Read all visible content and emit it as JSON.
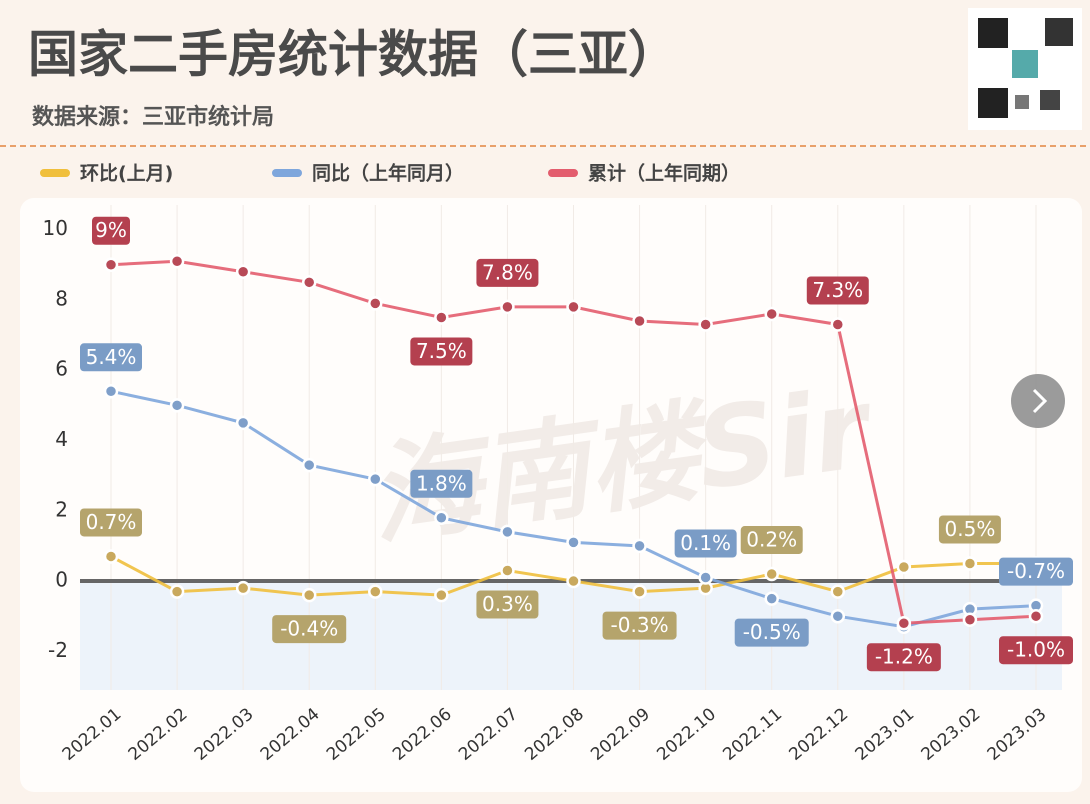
{
  "chart_data": {
    "type": "line",
    "title": "国家二手房统计数据（三亚）",
    "subtitle": "数据来源：三亚市统计局",
    "watermark": "海南楼Sir",
    "categories": [
      "2022.01",
      "2022.02",
      "2022.03",
      "2022.04",
      "2022.05",
      "2022.06",
      "2022.07",
      "2022.08",
      "2022.09",
      "2022.10",
      "2022.11",
      "2022.12",
      "2023.01",
      "2023.02",
      "2023.03"
    ],
    "series": [
      {
        "name": "环比(上月)",
        "color": "#f0bf3c",
        "values": [
          0.7,
          -0.3,
          -0.2,
          -0.4,
          -0.3,
          -0.4,
          0.3,
          0,
          -0.3,
          -0.2,
          0.2,
          -0.3,
          0.4,
          0.5,
          0.5
        ],
        "value_labels": [
          "0.7%",
          null,
          null,
          "-0.4%",
          null,
          null,
          "0.3%",
          null,
          "-0.3%",
          null,
          "0.2%",
          null,
          null,
          "0.5%",
          null
        ]
      },
      {
        "name": "同比（上年同月）",
        "color": "#7ea6dc",
        "values": [
          5.4,
          5.0,
          4.5,
          3.3,
          2.9,
          1.8,
          1.4,
          1.1,
          1.0,
          0.1,
          -0.5,
          -1.0,
          -1.3,
          -0.8,
          -0.7
        ],
        "value_labels": [
          "5.4%",
          null,
          null,
          null,
          null,
          "1.8%",
          null,
          null,
          null,
          "0.1%",
          "-0.5%",
          null,
          null,
          null,
          "-0.7%"
        ]
      },
      {
        "name": "累计（上年同期）",
        "color": "#e35d6e",
        "values": [
          9,
          9.1,
          8.8,
          8.5,
          7.9,
          7.5,
          7.8,
          7.8,
          7.4,
          7.3,
          7.6,
          7.3,
          -1.2,
          -1.1,
          -1.0
        ],
        "value_labels": [
          "9%",
          null,
          null,
          null,
          null,
          "7.5%",
          "7.8%",
          null,
          null,
          null,
          null,
          "7.3%",
          "-1.2%",
          null,
          "-1.0%"
        ]
      }
    ],
    "ylim": [
      -3.1,
      10.7
    ],
    "yticks": [
      -2,
      0,
      2,
      4,
      6,
      8,
      10
    ],
    "grid": true
  }
}
